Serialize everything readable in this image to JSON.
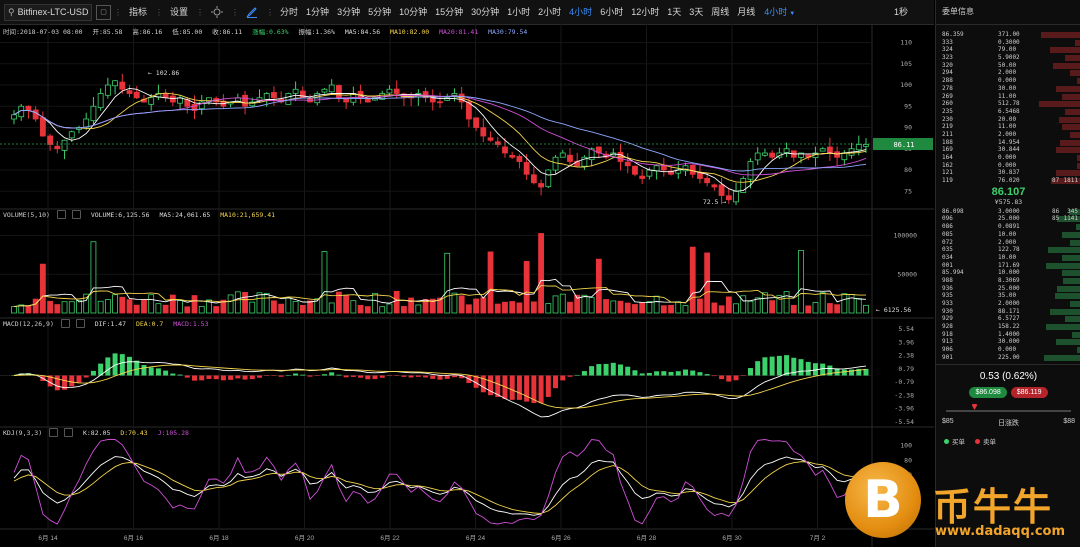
{
  "toolbar": {
    "symbol": "Bitfinex-LTC-USD",
    "indicators_label": "指标",
    "settings_label": "设置",
    "periods": [
      "分时",
      "1分钟",
      "3分钟",
      "5分钟",
      "10分钟",
      "15分钟",
      "30分钟",
      "1小时",
      "2小时",
      "4小时",
      "6小时",
      "12小时",
      "1天",
      "3天",
      "周线",
      "月线"
    ],
    "active_period": "4小时",
    "period_dropdown": "4小时",
    "refresh": "1秒"
  },
  "info": {
    "time": "时间:2018-07-03 08:00",
    "open": "开:85.58",
    "high": "高:86.16",
    "low": "低:85.00",
    "close": "收:86.11",
    "change": "涨幅:0.63%",
    "amplitude": "振幅:1.36%",
    "ma5": "MA5:84.56",
    "ma10": "MA10:82.00",
    "ma20": "MA20:81.41",
    "ma30": "MA30:79.54"
  },
  "volume_info": {
    "label": "VOLUME(5,10)",
    "volume": "VOLUME:6,125.56",
    "ma5": "MA5:24,061.65",
    "ma10": "MA10:21,659.41"
  },
  "macd_info": {
    "label": "MACD(12,26,9)",
    "dif": "DIF:1.47",
    "dea": "DEA:0.7",
    "macd": "MACD:1.53"
  },
  "kdj_info": {
    "label": "KDJ(9,3,3)",
    "k": "K:82.05",
    "d": "D:70.43",
    "j": "J:105.28"
  },
  "axes": {
    "price_ticks": [
      "110",
      "105",
      "100",
      "95",
      "90",
      "85",
      "80",
      "75"
    ],
    "volume_ticks": [
      "100000",
      "50000"
    ],
    "macd_ticks": [
      "5.54",
      "3.96",
      "2.38",
      "0.79",
      "-0.79",
      "-2.38",
      "-3.96",
      "-5.54"
    ],
    "kdj_ticks": [
      "100",
      "80",
      "60",
      "40",
      "20"
    ],
    "date_ticks": [
      "6月 14",
      "6月 16",
      "6月 18",
      "6月 20",
      "6月 22",
      "6月 24",
      "6月 26",
      "6月 28",
      "6月 30",
      "7月 2"
    ],
    "current_price_tag": "86.11",
    "high_label": "102.86",
    "low_label": "72.5",
    "volume_last_label": "6125.56"
  },
  "colors": {
    "up": "#3dd16b",
    "down": "#e8333a",
    "ma5": "#ffffff",
    "ma10": "#f5d64c",
    "ma20": "#d04fd8",
    "ma30": "#8ca7ff",
    "accent": "#3a8df6"
  },
  "chart_data": {
    "type": "candlestick",
    "close_series": [
      93,
      95,
      94,
      92,
      88,
      86,
      85,
      87,
      89,
      90,
      92,
      95,
      98,
      100,
      101,
      99,
      98,
      97,
      96,
      97,
      98,
      97,
      96,
      97,
      95,
      94,
      96,
      97,
      96,
      95,
      96,
      97,
      95,
      96,
      97,
      98,
      97,
      96,
      98,
      99,
      97,
      96,
      98,
      99,
      100,
      97,
      96,
      98,
      97,
      96,
      97,
      98,
      99,
      98,
      97,
      97,
      98,
      97,
      96,
      96,
      97,
      98,
      96,
      92,
      90,
      88,
      87,
      86,
      84,
      83,
      82,
      79,
      77,
      76,
      80,
      83,
      84,
      82,
      81,
      83,
      85,
      84,
      83,
      84,
      82,
      81,
      79,
      78,
      80,
      81,
      80,
      79,
      80,
      81,
      79,
      78,
      77,
      76,
      74,
      73,
      75,
      78,
      82,
      84,
      84,
      83,
      84,
      85,
      83,
      84,
      83,
      84,
      85,
      84,
      83,
      84,
      85,
      86,
      86
    ],
    "price_range": [
      72,
      112
    ],
    "high": 102.86,
    "low": 72.5
  },
  "right_panel": {
    "title": "委单信息",
    "asks": [
      [
        "86.359",
        "371.00"
      ],
      [
        "333",
        "0.3000"
      ],
      [
        "324",
        "79.00"
      ],
      [
        "323",
        "5.9002"
      ],
      [
        "320",
        "50.00"
      ],
      [
        "294",
        "2.000"
      ],
      [
        "288",
        "0.000"
      ],
      [
        "278",
        "30.00"
      ],
      [
        "269",
        "11.00"
      ],
      [
        "260",
        "512.78"
      ],
      [
        "235",
        "6.5468"
      ],
      [
        "230",
        "20.00"
      ],
      [
        "219",
        "11.00"
      ],
      [
        "211",
        "2.000"
      ],
      [
        "188",
        "14.954"
      ],
      [
        "169",
        "30.844"
      ],
      [
        "164",
        "0.000"
      ],
      [
        "162",
        "0.000"
      ],
      [
        "121",
        "30.837"
      ],
      [
        "119",
        "76.020",
        "87",
        "1811"
      ]
    ],
    "mid_price": "86.107",
    "mid_sub": "¥575.83",
    "bids": [
      [
        "86.098",
        "3.0000",
        "86",
        "345"
      ],
      [
        "096",
        "25.000",
        "85",
        "1141"
      ],
      [
        "086",
        "0.0891"
      ],
      [
        "085",
        "10.00"
      ],
      [
        "072",
        "2.000"
      ],
      [
        "035",
        "122.78"
      ],
      [
        "034",
        "10.00"
      ],
      [
        "001",
        "171.69"
      ],
      [
        "85.994",
        "10.000"
      ],
      [
        "988",
        "8.3069"
      ],
      [
        "936",
        "25.000"
      ],
      [
        "935",
        "35.00"
      ],
      [
        "933",
        "2.0000"
      ],
      [
        "930",
        "88.171"
      ],
      [
        "929",
        "6.5727"
      ],
      [
        "928",
        "158.22"
      ],
      [
        "918",
        "1.4000"
      ],
      [
        "913",
        "30.000"
      ],
      [
        "906",
        "0.000"
      ],
      [
        "901",
        "225.00"
      ]
    ],
    "change": "0.53 (0.62%)",
    "bid_pill": "$86.098",
    "ask_pill": "$86.119",
    "range_low": "$85",
    "range_high": "$88",
    "range_label": "日涨跌",
    "buy_label": "买单",
    "sell_label": "卖单"
  },
  "watermark": {
    "coin_symbol": "B",
    "name": "币牛牛",
    "url": "www.dadaqq.com"
  }
}
